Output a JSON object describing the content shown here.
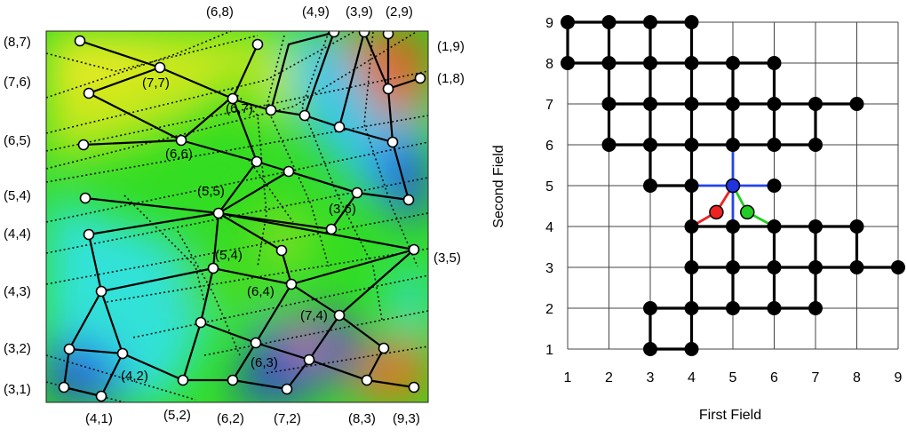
{
  "left_panel": {
    "outer_labels": [
      {
        "text": "(6,8)"
      },
      {
        "text": "(4,9)"
      },
      {
        "text": "(3,9)"
      },
      {
        "text": "(2,9)"
      },
      {
        "text": "(1,9)"
      },
      {
        "text": "(1,8)"
      },
      {
        "text": "(8,7)"
      },
      {
        "text": "(7,6)"
      },
      {
        "text": "(6,5)"
      },
      {
        "text": "(5,4)"
      },
      {
        "text": "(4,4)"
      },
      {
        "text": "(4,3)"
      },
      {
        "text": "(3,2)"
      },
      {
        "text": "(3,1)"
      },
      {
        "text": "(4,1)"
      },
      {
        "text": "(5,2)"
      },
      {
        "text": "(6,2)"
      },
      {
        "text": "(7,2)"
      },
      {
        "text": "(8,3)"
      },
      {
        "text": "(9,3)"
      },
      {
        "text": "(3,5)"
      }
    ],
    "inner_labels": [
      {
        "text": "(7,7)"
      },
      {
        "text": "(6,7)"
      },
      {
        "text": "(6,6)"
      },
      {
        "text": "(5,5)"
      },
      {
        "text": "(3,6)"
      },
      {
        "text": "(5,4)"
      },
      {
        "text": "(6,4)"
      },
      {
        "text": "(7,4)"
      },
      {
        "text": "(6,3)"
      },
      {
        "text": "(4,2)"
      }
    ]
  },
  "chart_data": {
    "type": "graph-on-grid",
    "xlabel": "First Field",
    "ylabel": "Second Field",
    "xlim": [
      1,
      9
    ],
    "ylim": [
      1,
      9
    ],
    "x_ticks": [
      "1",
      "2",
      "3",
      "4",
      "5",
      "6",
      "7",
      "8",
      "9"
    ],
    "y_ticks": [
      "1",
      "2",
      "3",
      "4",
      "5",
      "6",
      "7",
      "8",
      "9"
    ],
    "grid": true,
    "nodes": [
      [
        1,
        9
      ],
      [
        2,
        9
      ],
      [
        3,
        9
      ],
      [
        4,
        9
      ],
      [
        1,
        8
      ],
      [
        2,
        8
      ],
      [
        3,
        8
      ],
      [
        4,
        8
      ],
      [
        5,
        8
      ],
      [
        6,
        8
      ],
      [
        2,
        7
      ],
      [
        3,
        7
      ],
      [
        4,
        7
      ],
      [
        5,
        7
      ],
      [
        6,
        7
      ],
      [
        7,
        7
      ],
      [
        8,
        7
      ],
      [
        2,
        6
      ],
      [
        3,
        6
      ],
      [
        4,
        6
      ],
      [
        5,
        6
      ],
      [
        6,
        6
      ],
      [
        7,
        6
      ],
      [
        3,
        5
      ],
      [
        4,
        5
      ],
      [
        6,
        5
      ],
      [
        4,
        4
      ],
      [
        5,
        4
      ],
      [
        6,
        4
      ],
      [
        7,
        4
      ],
      [
        8,
        4
      ],
      [
        4,
        3
      ],
      [
        5,
        3
      ],
      [
        6,
        3
      ],
      [
        7,
        3
      ],
      [
        8,
        3
      ],
      [
        9,
        3
      ],
      [
        3,
        2
      ],
      [
        4,
        2
      ],
      [
        5,
        2
      ],
      [
        6,
        2
      ],
      [
        7,
        2
      ],
      [
        3,
        1
      ],
      [
        4,
        1
      ]
    ],
    "edges": [
      [
        [
          1,
          9
        ],
        [
          2,
          9
        ]
      ],
      [
        [
          2,
          9
        ],
        [
          3,
          9
        ]
      ],
      [
        [
          3,
          9
        ],
        [
          4,
          9
        ]
      ],
      [
        [
          1,
          8
        ],
        [
          2,
          8
        ]
      ],
      [
        [
          2,
          8
        ],
        [
          3,
          8
        ]
      ],
      [
        [
          3,
          8
        ],
        [
          4,
          8
        ]
      ],
      [
        [
          4,
          8
        ],
        [
          5,
          8
        ]
      ],
      [
        [
          5,
          8
        ],
        [
          6,
          8
        ]
      ],
      [
        [
          2,
          7
        ],
        [
          3,
          7
        ]
      ],
      [
        [
          3,
          7
        ],
        [
          4,
          7
        ]
      ],
      [
        [
          4,
          7
        ],
        [
          5,
          7
        ]
      ],
      [
        [
          5,
          7
        ],
        [
          6,
          7
        ]
      ],
      [
        [
          6,
          7
        ],
        [
          7,
          7
        ]
      ],
      [
        [
          7,
          7
        ],
        [
          8,
          7
        ]
      ],
      [
        [
          2,
          6
        ],
        [
          3,
          6
        ]
      ],
      [
        [
          3,
          6
        ],
        [
          4,
          6
        ]
      ],
      [
        [
          4,
          6
        ],
        [
          5,
          6
        ]
      ],
      [
        [
          5,
          6
        ],
        [
          6,
          6
        ]
      ],
      [
        [
          6,
          6
        ],
        [
          7,
          6
        ]
      ],
      [
        [
          3,
          5
        ],
        [
          4,
          5
        ]
      ],
      [
        [
          4,
          4
        ],
        [
          5,
          4
        ]
      ],
      [
        [
          5,
          4
        ],
        [
          6,
          4
        ]
      ],
      [
        [
          6,
          4
        ],
        [
          7,
          4
        ]
      ],
      [
        [
          7,
          4
        ],
        [
          8,
          4
        ]
      ],
      [
        [
          4,
          3
        ],
        [
          5,
          3
        ]
      ],
      [
        [
          5,
          3
        ],
        [
          6,
          3
        ]
      ],
      [
        [
          6,
          3
        ],
        [
          7,
          3
        ]
      ],
      [
        [
          7,
          3
        ],
        [
          8,
          3
        ]
      ],
      [
        [
          8,
          3
        ],
        [
          9,
          3
        ]
      ],
      [
        [
          3,
          2
        ],
        [
          4,
          2
        ]
      ],
      [
        [
          4,
          2
        ],
        [
          5,
          2
        ]
      ],
      [
        [
          5,
          2
        ],
        [
          6,
          2
        ]
      ],
      [
        [
          6,
          2
        ],
        [
          7,
          2
        ]
      ],
      [
        [
          3,
          1
        ],
        [
          4,
          1
        ]
      ],
      [
        [
          1,
          9
        ],
        [
          1,
          8
        ]
      ],
      [
        [
          2,
          9
        ],
        [
          2,
          8
        ]
      ],
      [
        [
          3,
          9
        ],
        [
          3,
          8
        ]
      ],
      [
        [
          4,
          9
        ],
        [
          4,
          8
        ]
      ],
      [
        [
          2,
          8
        ],
        [
          2,
          7
        ]
      ],
      [
        [
          3,
          8
        ],
        [
          3,
          7
        ]
      ],
      [
        [
          4,
          8
        ],
        [
          4,
          7
        ]
      ],
      [
        [
          5,
          8
        ],
        [
          5,
          7
        ]
      ],
      [
        [
          6,
          8
        ],
        [
          6,
          7
        ]
      ],
      [
        [
          2,
          7
        ],
        [
          2,
          6
        ]
      ],
      [
        [
          3,
          7
        ],
        [
          3,
          6
        ]
      ],
      [
        [
          4,
          7
        ],
        [
          4,
          6
        ]
      ],
      [
        [
          5,
          7
        ],
        [
          5,
          6
        ]
      ],
      [
        [
          6,
          7
        ],
        [
          6,
          6
        ]
      ],
      [
        [
          7,
          7
        ],
        [
          7,
          6
        ]
      ],
      [
        [
          3,
          6
        ],
        [
          3,
          5
        ]
      ],
      [
        [
          4,
          6
        ],
        [
          4,
          5
        ]
      ],
      [
        [
          4,
          5
        ],
        [
          4,
          4
        ]
      ],
      [
        [
          4,
          4
        ],
        [
          4,
          3
        ]
      ],
      [
        [
          5,
          4
        ],
        [
          5,
          3
        ]
      ],
      [
        [
          6,
          4
        ],
        [
          6,
          3
        ]
      ],
      [
        [
          7,
          4
        ],
        [
          7,
          3
        ]
      ],
      [
        [
          8,
          4
        ],
        [
          8,
          3
        ]
      ],
      [
        [
          4,
          3
        ],
        [
          4,
          2
        ]
      ],
      [
        [
          5,
          3
        ],
        [
          5,
          2
        ]
      ],
      [
        [
          6,
          3
        ],
        [
          6,
          2
        ]
      ],
      [
        [
          7,
          3
        ],
        [
          7,
          2
        ]
      ],
      [
        [
          3,
          2
        ],
        [
          3,
          1
        ]
      ],
      [
        [
          4,
          2
        ],
        [
          4,
          1
        ]
      ]
    ],
    "highlight_node": {
      "x": 5,
      "y": 5,
      "color": "#2233dd"
    },
    "highlight_edges": [
      {
        "to": [
          4,
          5
        ],
        "color": "#2244ee"
      },
      {
        "to": [
          6,
          5
        ],
        "color": "#2244ee"
      },
      {
        "to": [
          5,
          6
        ],
        "color": "#2244ee"
      },
      {
        "to": [
          5,
          4
        ],
        "color": "#2244ee"
      }
    ],
    "extra_nodes": [
      {
        "x": 4.6,
        "y": 4.35,
        "color": "#ee2222",
        "links": [
          [
            4,
            4
          ],
          [
            5,
            5
          ]
        ],
        "link_color": "#ee2222"
      },
      {
        "x": 5.35,
        "y": 4.35,
        "color": "#22cc22",
        "links": [
          [
            5,
            5
          ],
          [
            6,
            4
          ]
        ],
        "link_color": "#22cc22"
      }
    ]
  }
}
